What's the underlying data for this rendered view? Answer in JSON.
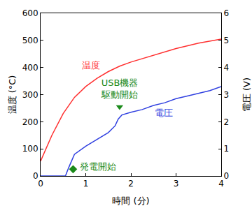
{
  "chart_data": {
    "type": "line",
    "x_label": "時間 (分)",
    "y_label": "温度 (°C)",
    "y2_label": "電圧 (V)",
    "xlim": [
      0,
      4
    ],
    "xticks": [
      0,
      1,
      2,
      3,
      4
    ],
    "ylim": [
      0,
      600
    ],
    "yticks": [
      0,
      100,
      200,
      300,
      400,
      500,
      600
    ],
    "y2lim": [
      0,
      6
    ],
    "y2ticks": [
      0,
      1,
      2,
      3,
      4,
      5,
      6
    ],
    "grid": false,
    "legend": "none",
    "series": [
      {
        "name": "温度",
        "color": "#ff3030",
        "axis": "y",
        "x": [
          0,
          0.1,
          0.25,
          0.5,
          0.75,
          1.0,
          1.25,
          1.5,
          1.75,
          2.0,
          2.5,
          3.0,
          3.5,
          4.0
        ],
        "values": [
          55,
          95,
          150,
          230,
          290,
          330,
          360,
          385,
          405,
          420,
          445,
          470,
          490,
          505
        ]
      },
      {
        "name": "電圧",
        "color": "#3040e0",
        "axis": "y2",
        "x": [
          0,
          0.55,
          0.62,
          0.7,
          0.75,
          1.0,
          1.25,
          1.5,
          1.65,
          1.72,
          1.8,
          2.0,
          2.25,
          2.4,
          2.5,
          2.75,
          3.0,
          3.25,
          3.5,
          3.75,
          4.0
        ],
        "values": [
          0,
          0,
          0.3,
          0.6,
          0.8,
          1.1,
          1.35,
          1.6,
          1.85,
          2.1,
          2.25,
          2.35,
          2.45,
          2.55,
          2.6,
          2.7,
          2.85,
          2.95,
          3.05,
          3.15,
          3.3
        ]
      }
    ],
    "annotations": [
      {
        "text": "発電開始",
        "x": 0.72,
        "y": 0.25,
        "axis": "y2",
        "color": "#1a8a1a",
        "marker": "diamond"
      },
      {
        "text": "USB機器\n駆動開始",
        "x": 1.75,
        "y": 2.55,
        "axis": "y2",
        "color": "#1a8a1a",
        "marker": "triangle-down"
      }
    ]
  }
}
